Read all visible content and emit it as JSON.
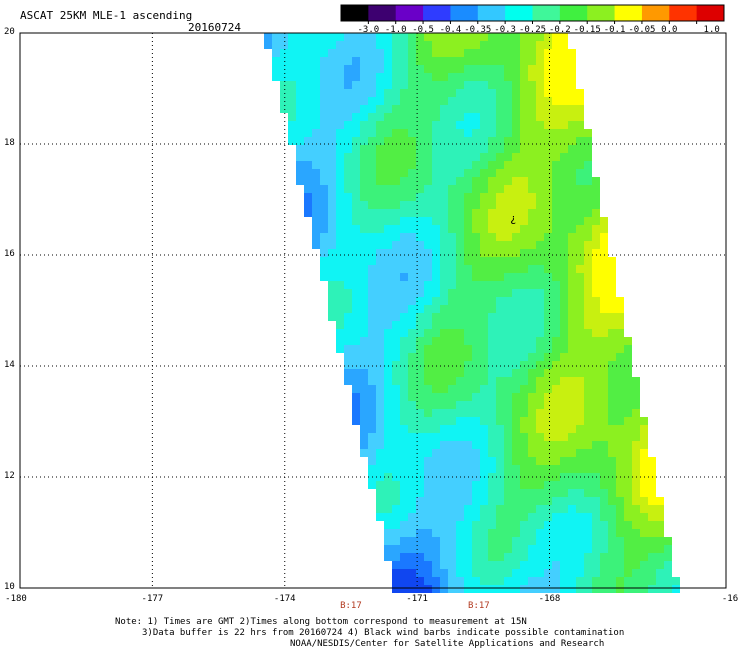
{
  "header": {
    "title": "ASCAT 25KM MLE-1 ascending",
    "date": "20160724"
  },
  "colorbar": {
    "labels": [
      "-3.0",
      "-1.0",
      "-0.5",
      "-0.4",
      "-0.35",
      "-0.3",
      "-0.25",
      "-0.2",
      "-0.15",
      "-0.1",
      "-0.05",
      "0.0",
      "1.0"
    ],
    "colors": [
      "#000000",
      "#3d0070",
      "#6a00c8",
      "#2f3cff",
      "#1a8cff",
      "#33c8ff",
      "#00ffee",
      "#3ff79a",
      "#40f040",
      "#8cf020",
      "#ffff00",
      "#ff9900",
      "#ff3300",
      "#dd0000"
    ]
  },
  "map": {
    "lat_min": 10,
    "lat_max": 20,
    "lon_min": -180,
    "lon_max": -164,
    "lat_ticks": [
      "20",
      "18",
      "16",
      "14",
      "12",
      "10"
    ],
    "lon_ticks": [
      "-180",
      "-177",
      "-174",
      "-171",
      "-168",
      "-16"
    ],
    "swath_marker": "¿",
    "time_labels": [
      {
        "text": "B:17",
        "lon": -172.5
      },
      {
        "text": "B:17",
        "lon": -169.6
      }
    ]
  },
  "footer": {
    "line1": "Note: 1) Times are GMT 2)Times along bottom correspond to measurement at 15N",
    "line2": "3)Data buffer is 22 hrs from 20160724 4) Black wind barbs indicate possible contamination",
    "line3": "NOAA/NESDIS/Center for Satellite Applications and Research"
  }
}
